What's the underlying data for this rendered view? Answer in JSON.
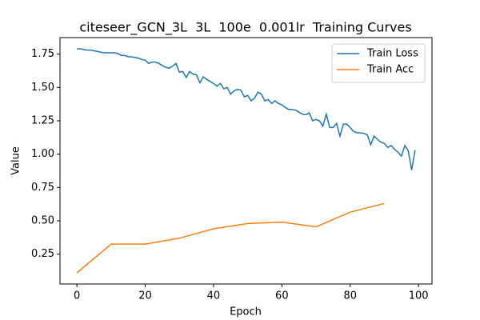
{
  "chart_data": {
    "type": "line",
    "title": "citeseer_GCN_3L  3L  100e  0.001lr  Training Curves",
    "x_label": "Epoch",
    "y_label": "Value",
    "xlim": [
      -4.95,
      103.95
    ],
    "ylim": [
      0.026,
      1.874
    ],
    "xticks": [
      0,
      20,
      40,
      60,
      80,
      100
    ],
    "yticks": [
      0.25,
      {
        "value": 0.5,
        "label": "0.50"
      },
      0.75,
      {
        "value": 1.0,
        "label": "1.00"
      },
      1.25,
      {
        "value": 1.5,
        "label": "1.50"
      },
      1.75
    ],
    "legend": "upper right",
    "grid": false,
    "series": [
      {
        "name": "Train Loss",
        "color": "#1f77b4",
        "x": [
          0,
          1,
          2,
          3,
          4,
          5,
          6,
          7,
          8,
          9,
          10,
          11,
          12,
          13,
          14,
          15,
          16,
          17,
          18,
          19,
          20,
          21,
          22,
          23,
          24,
          25,
          26,
          27,
          28,
          29,
          30,
          31,
          32,
          33,
          34,
          35,
          36,
          37,
          38,
          39,
          40,
          41,
          42,
          43,
          44,
          45,
          46,
          47,
          48,
          49,
          50,
          51,
          52,
          53,
          54,
          55,
          56,
          57,
          58,
          59,
          60,
          61,
          62,
          63,
          64,
          65,
          66,
          67,
          68,
          69,
          70,
          71,
          72,
          73,
          74,
          75,
          76,
          77,
          78,
          79,
          80,
          81,
          82,
          83,
          84,
          85,
          86,
          87,
          88,
          89,
          90,
          91,
          92,
          93,
          94,
          95,
          96,
          97,
          98,
          99
        ],
        "values": [
          1.79,
          1.79,
          1.785,
          1.78,
          1.78,
          1.775,
          1.77,
          1.765,
          1.76,
          1.76,
          1.76,
          1.76,
          1.755,
          1.74,
          1.74,
          1.73,
          1.73,
          1.725,
          1.72,
          1.71,
          1.705,
          1.68,
          1.69,
          1.69,
          1.68,
          1.665,
          1.65,
          1.645,
          1.66,
          1.68,
          1.615,
          1.62,
          1.575,
          1.62,
          1.6,
          1.595,
          1.535,
          1.58,
          1.56,
          1.545,
          1.53,
          1.51,
          1.53,
          1.49,
          1.5,
          1.45,
          1.475,
          1.485,
          1.48,
          1.43,
          1.44,
          1.4,
          1.42,
          1.465,
          1.45,
          1.4,
          1.41,
          1.38,
          1.4,
          1.38,
          1.37,
          1.35,
          1.335,
          1.335,
          1.33,
          1.315,
          1.3,
          1.295,
          1.31,
          1.25,
          1.26,
          1.25,
          1.21,
          1.3,
          1.2,
          1.2,
          1.23,
          1.135,
          1.225,
          1.225,
          1.2,
          1.17,
          1.16,
          1.16,
          1.155,
          1.145,
          1.07,
          1.135,
          1.11,
          1.09,
          1.08,
          1.05,
          1.065,
          1.035,
          1.015,
          0.985,
          1.065,
          1.025,
          0.88,
          1.03
        ]
      },
      {
        "name": "Train Acc",
        "color": "#ff7f0e",
        "x": [
          0,
          10,
          20,
          30,
          40,
          50,
          60,
          70,
          80,
          90
        ],
        "values": [
          0.11,
          0.325,
          0.325,
          0.37,
          0.44,
          0.48,
          0.49,
          0.455,
          0.565,
          0.63
        ]
      }
    ]
  }
}
